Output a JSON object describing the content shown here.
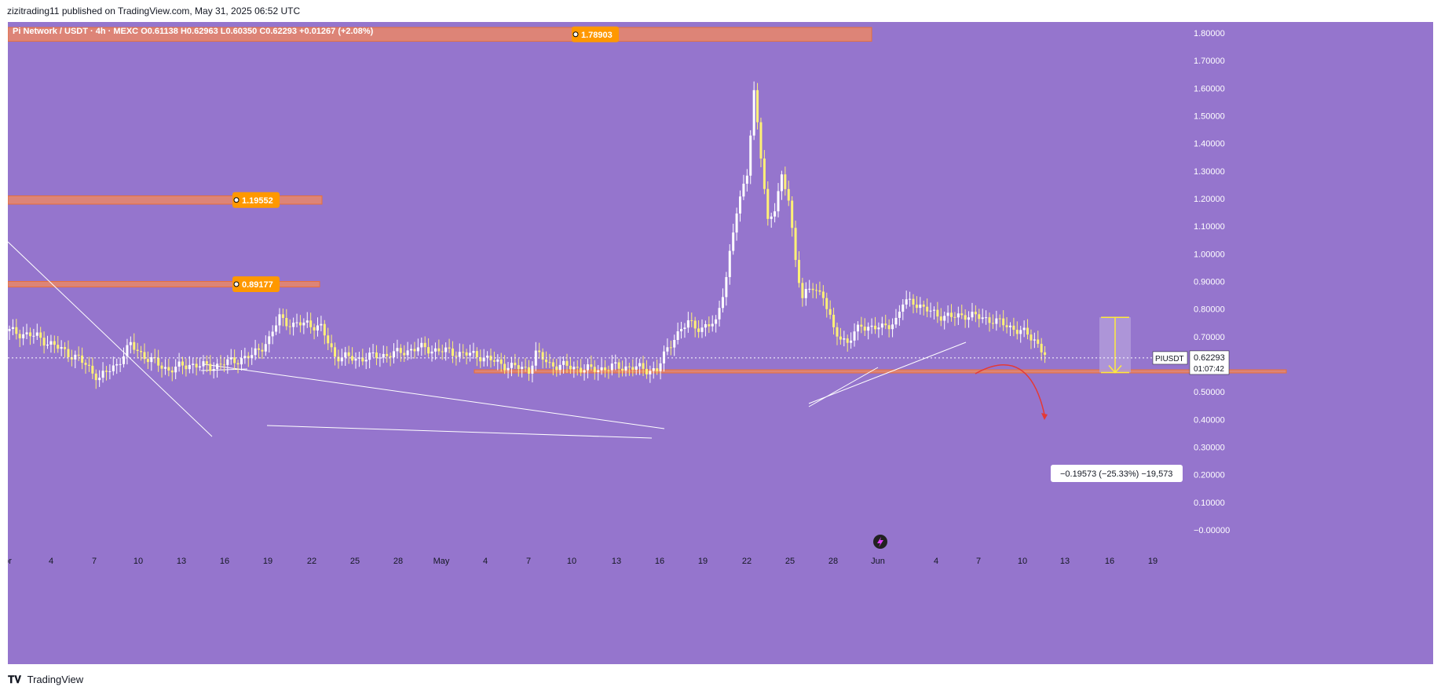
{
  "header": {
    "publisher_line": "zizitrading11 published on TradingView.com, May 31, 2025 06:52 UTC"
  },
  "legend": {
    "symbol_line": "Pi Network / USDT · 4h · MEXC",
    "open": "O0.61138",
    "high": "H0.62963",
    "low": "L0.60350",
    "close": "C0.62293",
    "change": "+0.01267 (+2.08%)"
  },
  "footer": {
    "logo_text": "TradingView"
  },
  "colors": {
    "background": "#9575cd",
    "candle_up": "#ffffff",
    "candle_down": "#fff176",
    "zone_fill": "#f5895a",
    "zone_label": "#ff9800",
    "trendline": "#ffffff",
    "arc": "#e53935",
    "measure": "#ffeb3b"
  },
  "chart_data": {
    "type": "candlestick",
    "symbol": "PIUSDT",
    "timeframe": "4h",
    "exchange": "MEXC",
    "ylim": [
      -0.05,
      1.85
    ],
    "y_ticks": [
      "1.80000",
      "1.70000",
      "1.60000",
      "1.50000",
      "1.40000",
      "1.30000",
      "1.20000",
      "1.10000",
      "1.00000",
      "0.90000",
      "0.80000",
      "0.70000",
      "0.60000",
      "0.50000",
      "0.40000",
      "0.30000",
      "0.20000",
      "0.10000",
      "−0.00000"
    ],
    "x_ticks": [
      "or",
      "4",
      "7",
      "10",
      "13",
      "16",
      "19",
      "22",
      "25",
      "28",
      "May",
      "4",
      "7",
      "10",
      "13",
      "16",
      "19",
      "22",
      "25",
      "28",
      "Jun",
      "4",
      "7",
      "10",
      "13",
      "16",
      "19"
    ],
    "last_price": "0.62293",
    "last_price_label": "PIUSDT",
    "countdown": "01:07:42",
    "price_path": [
      [
        0,
        0.72
      ],
      [
        8,
        0.7
      ],
      [
        14,
        0.66
      ],
      [
        20,
        0.62
      ],
      [
        26,
        0.55
      ],
      [
        31,
        0.6
      ],
      [
        35,
        0.67
      ],
      [
        40,
        0.62
      ],
      [
        46,
        0.58
      ],
      [
        52,
        0.6
      ],
      [
        58,
        0.59
      ],
      [
        64,
        0.61
      ],
      [
        70,
        0.63
      ],
      [
        75,
        0.69
      ],
      [
        78,
        0.77
      ],
      [
        82,
        0.74
      ],
      [
        86,
        0.75
      ],
      [
        90,
        0.73
      ],
      [
        94,
        0.63
      ],
      [
        100,
        0.62
      ],
      [
        106,
        0.63
      ],
      [
        112,
        0.64
      ],
      [
        118,
        0.66
      ],
      [
        124,
        0.65
      ],
      [
        130,
        0.64
      ],
      [
        136,
        0.63
      ],
      [
        142,
        0.6
      ],
      [
        146,
        0.59
      ],
      [
        150,
        0.58
      ],
      [
        152,
        0.64
      ],
      [
        156,
        0.6
      ],
      [
        162,
        0.59
      ],
      [
        168,
        0.58
      ],
      [
        174,
        0.59
      ],
      [
        180,
        0.59
      ],
      [
        184,
        0.58
      ],
      [
        187,
        0.58
      ],
      [
        189,
        0.63
      ],
      [
        192,
        0.7
      ],
      [
        196,
        0.75
      ],
      [
        200,
        0.73
      ],
      [
        204,
        0.75
      ],
      [
        207,
        0.92
      ],
      [
        210,
        1.15
      ],
      [
        213,
        1.3
      ],
      [
        215,
        1.58
      ],
      [
        217,
        1.35
      ],
      [
        219,
        1.12
      ],
      [
        221,
        1.17
      ],
      [
        223,
        1.27
      ],
      [
        225,
        1.2
      ],
      [
        227,
        0.98
      ],
      [
        229,
        0.84
      ],
      [
        232,
        0.88
      ],
      [
        235,
        0.85
      ],
      [
        238,
        0.72
      ],
      [
        242,
        0.68
      ],
      [
        246,
        0.74
      ],
      [
        252,
        0.73
      ],
      [
        256,
        0.76
      ],
      [
        258,
        0.82
      ],
      [
        261,
        0.83
      ],
      [
        264,
        0.8
      ],
      [
        268,
        0.78
      ],
      [
        272,
        0.77
      ],
      [
        276,
        0.78
      ],
      [
        280,
        0.77
      ],
      [
        284,
        0.76
      ],
      [
        288,
        0.74
      ],
      [
        292,
        0.72
      ],
      [
        296,
        0.69
      ],
      [
        300,
        0.62
      ]
    ],
    "horizontal_zones": [
      {
        "low": 1.77,
        "high": 1.82,
        "label": "1.78903"
      },
      {
        "low": 1.18,
        "high": 1.21,
        "label": "1.19552"
      },
      {
        "low": 0.88,
        "high": 0.9,
        "label": "0.89177"
      },
      {
        "low": 0.57,
        "high": 0.58,
        "label": ""
      }
    ],
    "measurement": {
      "from": 0.77,
      "to": 0.57,
      "label": "−0.19573 (−25.33%) −19,573"
    },
    "grid": false,
    "watermark_icon": "lightning-icon"
  }
}
